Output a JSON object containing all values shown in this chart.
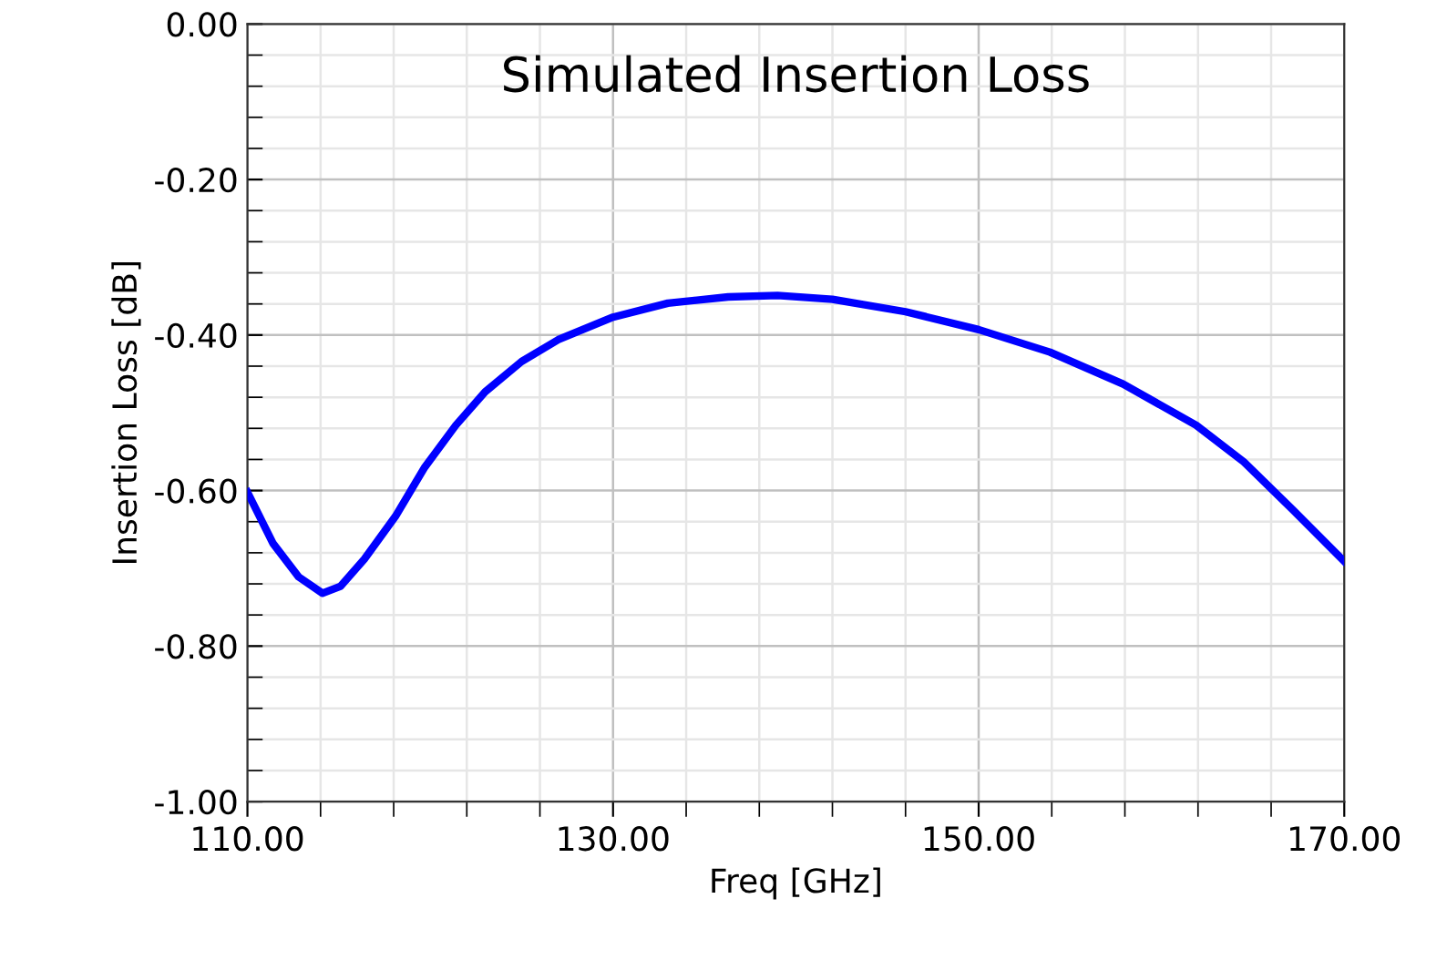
{
  "chart_data": {
    "type": "line",
    "title": "Simulated Insertion Loss",
    "xlabel": "Freq [GHz]",
    "ylabel": "Insertion Loss [dB]",
    "series": [
      {
        "color": "#0000ff",
        "x": [
          110,
          111.4,
          112.8,
          114.1,
          115.1,
          116.4,
          118.1,
          119.7,
          121.4,
          123.0,
          125.0,
          127.0,
          130.0,
          133.0,
          136.3,
          139.0,
          142.0,
          146.0,
          150.0,
          153.9,
          157.9,
          161.9,
          164.5,
          167.2,
          170
        ],
        "values": [
          -0.602,
          -0.668,
          -0.711,
          -0.732,
          -0.723,
          -0.688,
          -0.633,
          -0.57,
          -0.516,
          -0.473,
          -0.434,
          -0.406,
          -0.377,
          -0.359,
          -0.351,
          -0.349,
          -0.354,
          -0.37,
          -0.393,
          -0.422,
          -0.463,
          -0.516,
          -0.563,
          -0.625,
          -0.691
        ]
      }
    ],
    "xlim": [
      110,
      170
    ],
    "ylim": [
      -1.0,
      0.0
    ],
    "xticks": [
      {
        "value": 110,
        "label": "110.00"
      },
      {
        "value": 130,
        "label": "130.00"
      },
      {
        "value": 150,
        "label": "150.00"
      },
      {
        "value": 170,
        "label": "170.00"
      }
    ],
    "yticks": [
      {
        "value": -1.0,
        "label": "-1.00"
      },
      {
        "value": -0.8,
        "label": "-0.80"
      },
      {
        "value": -0.6,
        "label": "-0.60"
      },
      {
        "value": -0.4,
        "label": "-0.40"
      },
      {
        "value": -0.2,
        "label": "-0.20"
      },
      {
        "value": 0.0,
        "label": "0.00"
      }
    ],
    "grid": true,
    "legend": false,
    "line_style": "solid",
    "marker": "none"
  }
}
